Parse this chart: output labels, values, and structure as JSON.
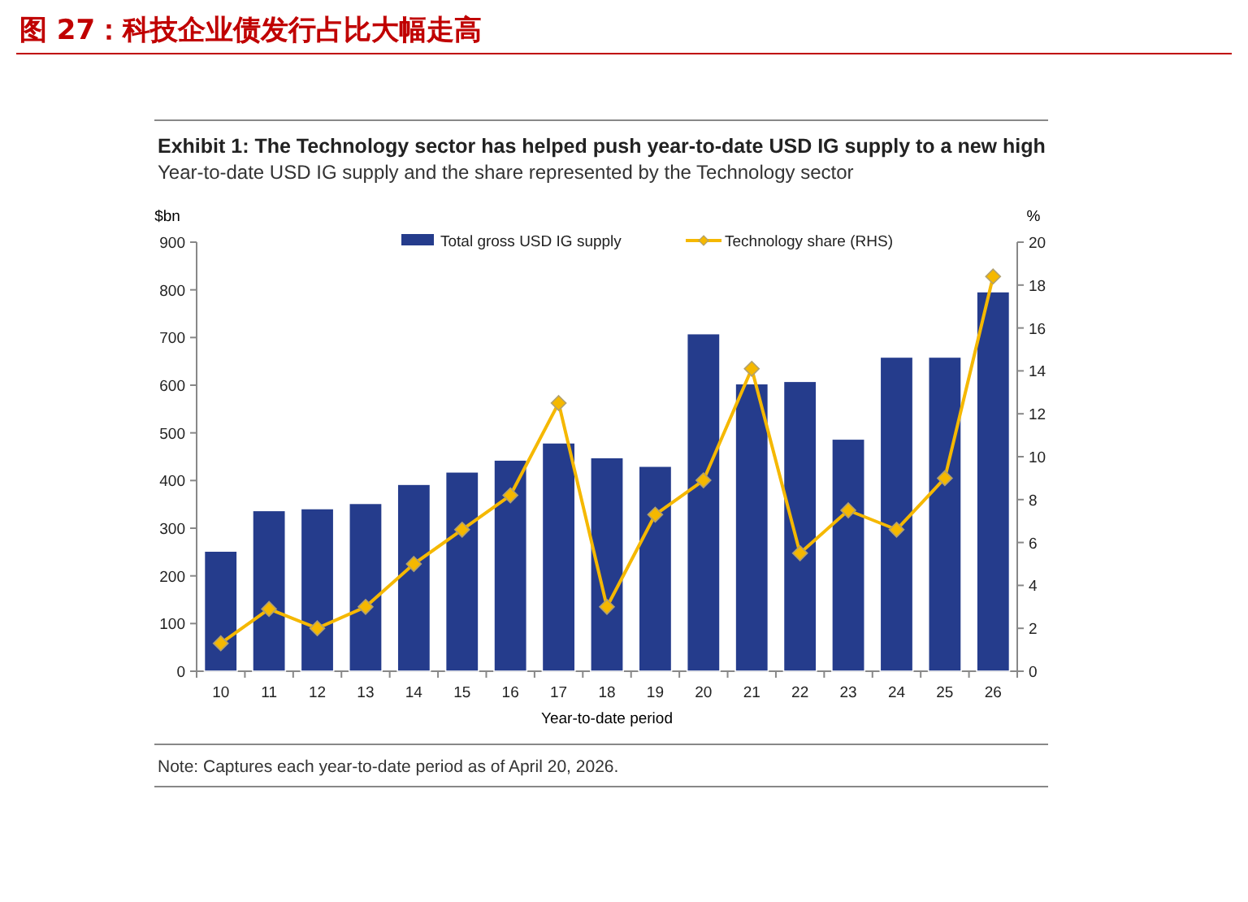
{
  "chart_data": {
    "type": "bar",
    "title": "图 27：科技企业债发行占比大幅走高",
    "subtitle": "Exhibit 1: The Technology sector has helped push year-to-date USD IG supply to a new high",
    "annotations": [
      "Year-to-date USD IG supply and the share represented by the Technology sector",
      "Note: Captures each year-to-date period as of April 20, 2026."
    ],
    "xlabel": "Year-to-date period",
    "ylabel": "$bn",
    "y2label": "%",
    "categories": [
      "10",
      "11",
      "12",
      "13",
      "14",
      "15",
      "16",
      "17",
      "18",
      "19",
      "20",
      "21",
      "22",
      "23",
      "24",
      "25",
      "26"
    ],
    "series": [
      {
        "name": "Total gross USD IG supply",
        "color": "#253c8c",
        "values": [
          252,
          337,
          341,
          352,
          392,
          418,
          443,
          479,
          448,
          430,
          708,
          603,
          608,
          487,
          659,
          659,
          796
        ]
      },
      {
        "name": "Technology share (RHS)",
        "type": "line",
        "axis": "y2",
        "color": "#f5b800",
        "marker": "diamond",
        "values": [
          1.3,
          2.9,
          2.0,
          3.0,
          5.0,
          6.6,
          8.2,
          12.5,
          3.0,
          7.3,
          8.9,
          14.1,
          5.5,
          7.5,
          6.6,
          9.0,
          18.4
        ]
      }
    ],
    "ylim": [
      0,
      900
    ],
    "yticks": [
      0,
      100,
      200,
      300,
      400,
      500,
      600,
      700,
      800,
      900
    ],
    "y2lim": [
      0,
      20
    ],
    "y2ticks": [
      0,
      2,
      4,
      6,
      8,
      10,
      12,
      14,
      16,
      18,
      20
    ],
    "legend": "top",
    "grid": false
  }
}
